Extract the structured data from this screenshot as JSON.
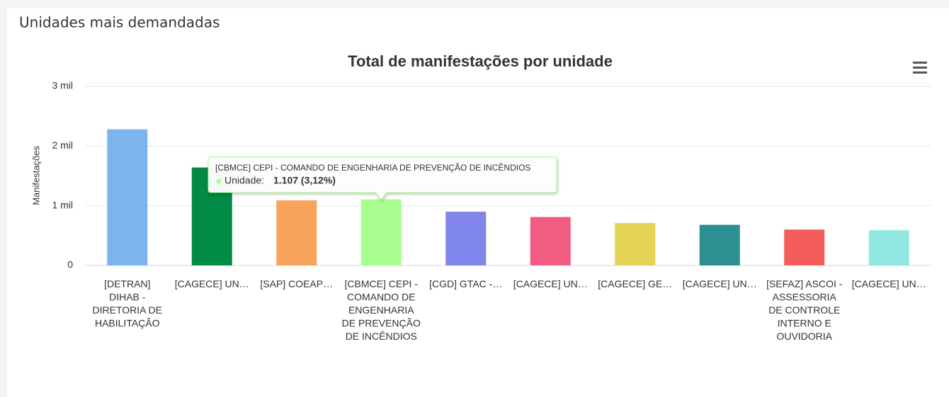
{
  "header": {
    "title": "Unidades mais demandadas"
  },
  "chart_data": {
    "type": "bar",
    "title": "Total de manifestações por unidade",
    "y_label": "Manifestações",
    "categories": [
      "[DETRAN] DIHAB - DIRETORIA DE HABILITAÇÃO",
      "[CAGECE] UN…",
      "[SAP] COEAP…",
      "[CBMCE] CEPI - COMANDO DE ENGENHARIA DE PREVENÇÃO DE INCÊNDIOS",
      "[CGD] GTAC -…",
      "[CAGECE] UN…",
      "[CAGECE] GE…",
      "[CAGECE] UN…",
      "[SEFAZ] ASCOI - ASSESSORIA DE CONTROLE INTERNO E OUVIDORIA",
      "[CAGECE] UN…"
    ],
    "values": [
      2280,
      1640,
      1090,
      1107,
      900,
      810,
      710,
      680,
      600,
      590
    ],
    "colors": [
      "#7cb5ec",
      "#008a44",
      "#f7a35c",
      "#a8ff90",
      "#8085e9",
      "#f15c80",
      "#e4d354",
      "#2b908f",
      "#f45b5b",
      "#91e8e1"
    ],
    "ylim": [
      0,
      3000
    ],
    "yticks": [
      0,
      {
        "value": 1000,
        "label": "1 mil"
      },
      {
        "value": 2000,
        "label": "2 mil"
      },
      {
        "value": 3000,
        "label": "3 mil"
      }
    ],
    "grid": true,
    "tooltip": {
      "title": "[CBMCE] CEPI - COMANDO DE ENGENHARIA DE PREVENÇÃO DE INCÊNDIOS",
      "series": "Unidade:",
      "value": "1.107 (3,12%)"
    }
  }
}
